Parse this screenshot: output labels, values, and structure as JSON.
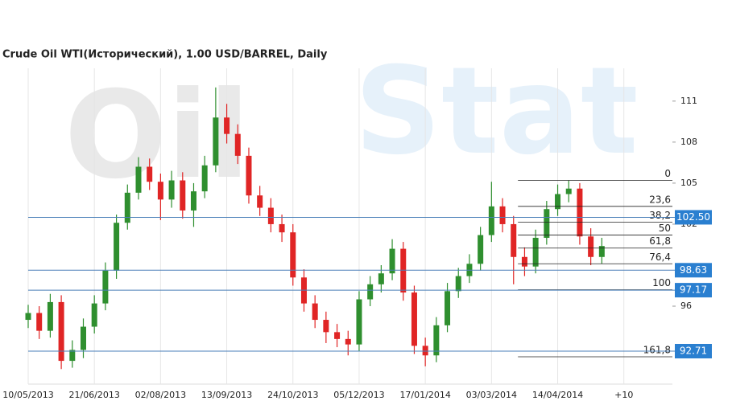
{
  "chart_data": {
    "type": "candlestick",
    "title": "Crude Oil WTI(Исторический), 1.00 USD/BARREL, Daily",
    "watermark_left": "Oil",
    "watermark_right": "Stat",
    "xlim": [
      0,
      292
    ],
    "ylim": [
      90.3,
      113.4
    ],
    "xticks": [
      {
        "value": 0,
        "label": "10/05/2013"
      },
      {
        "value": 30,
        "label": "21/06/2013"
      },
      {
        "value": 60,
        "label": "02/08/2013"
      },
      {
        "value": 90,
        "label": "13/09/2013"
      },
      {
        "value": 120,
        "label": "24/10/2013"
      },
      {
        "value": 150,
        "label": "05/12/2013"
      },
      {
        "value": 180,
        "label": "17/01/2014"
      },
      {
        "value": 210,
        "label": "03/03/2014"
      },
      {
        "value": 240,
        "label": "14/04/2014"
      },
      {
        "value": 270,
        "label": "+10"
      }
    ],
    "yticks": [
      96,
      102,
      105,
      108,
      111
    ],
    "up_color": "#2f8f2f",
    "down_color": "#e02525",
    "x": [
      0,
      5,
      10,
      15,
      20,
      25,
      30,
      35,
      40,
      45,
      50,
      55,
      60,
      65,
      70,
      75,
      80,
      85,
      90,
      95,
      100,
      105,
      110,
      115,
      120,
      125,
      130,
      135,
      140,
      145,
      150,
      155,
      160,
      165,
      170,
      175,
      180,
      185,
      190,
      195,
      200,
      205,
      210,
      215,
      220,
      225,
      230,
      235,
      240,
      245,
      250,
      255,
      260
    ],
    "open": [
      95.0,
      95.5,
      94.2,
      96.3,
      92.0,
      92.8,
      94.5,
      96.2,
      98.6,
      102.1,
      104.3,
      106.2,
      105.1,
      103.8,
      105.2,
      103.0,
      104.4,
      106.3,
      109.8,
      108.6,
      107.0,
      104.1,
      103.2,
      102.0,
      101.4,
      98.1,
      96.2,
      95.0,
      94.1,
      93.6,
      93.2,
      96.5,
      97.6,
      98.4,
      100.2,
      97.0,
      93.1,
      92.4,
      94.6,
      97.1,
      98.2,
      99.1,
      101.2,
      103.3,
      102.0,
      99.6,
      98.9,
      101.0,
      103.1,
      104.2,
      104.6,
      101.1,
      99.6
    ],
    "high": [
      96.1,
      96.0,
      96.9,
      96.8,
      93.5,
      95.1,
      96.8,
      99.2,
      102.7,
      104.9,
      106.9,
      106.8,
      105.7,
      105.9,
      105.8,
      105.0,
      107.0,
      112.0,
      110.8,
      109.3,
      107.6,
      104.8,
      103.9,
      102.7,
      102.0,
      98.7,
      96.8,
      95.6,
      94.7,
      94.2,
      97.1,
      98.2,
      99.0,
      100.9,
      100.7,
      97.5,
      93.7,
      95.2,
      97.7,
      98.8,
      99.8,
      101.8,
      105.1,
      103.9,
      102.6,
      100.3,
      101.6,
      103.7,
      104.9,
      105.2,
      105.0,
      101.7,
      101.0
    ],
    "low": [
      94.4,
      93.6,
      93.7,
      91.4,
      91.5,
      92.2,
      94.0,
      95.7,
      98.0,
      101.6,
      103.8,
      104.5,
      102.3,
      103.2,
      102.4,
      101.8,
      103.9,
      105.8,
      107.9,
      106.4,
      103.5,
      102.6,
      101.4,
      100.7,
      97.5,
      95.6,
      94.4,
      93.3,
      93.0,
      92.4,
      92.7,
      96.0,
      97.0,
      97.9,
      96.4,
      92.5,
      91.6,
      91.9,
      94.1,
      96.6,
      97.7,
      98.6,
      100.7,
      101.4,
      97.6,
      98.2,
      98.4,
      100.5,
      102.6,
      103.6,
      100.5,
      99.0,
      99.1
    ],
    "close": [
      95.5,
      94.2,
      96.3,
      92.0,
      92.8,
      94.5,
      96.2,
      98.6,
      102.1,
      104.3,
      106.2,
      105.1,
      103.8,
      105.2,
      103.0,
      104.4,
      106.3,
      109.8,
      108.6,
      107.0,
      104.1,
      103.2,
      102.0,
      101.4,
      98.1,
      96.2,
      95.0,
      94.1,
      93.6,
      93.2,
      96.5,
      97.6,
      98.4,
      100.2,
      97.0,
      93.1,
      92.4,
      94.6,
      97.1,
      98.2,
      99.1,
      101.2,
      103.3,
      102.0,
      99.6,
      98.9,
      101.0,
      103.1,
      104.2,
      104.6,
      101.1,
      99.6,
      100.4
    ],
    "levels": [
      {
        "value": 102.5,
        "label": "102.50"
      },
      98.63,
      97.17,
      92.71
    ],
    "level_color": "#4a7fb8",
    "label_box_color": "#2a7fd0",
    "fib_start": 222,
    "fib": [
      {
        "value": 105.2,
        "label": "0"
      },
      {
        "value": 103.3,
        "label": "23,6"
      },
      {
        "value": 102.15,
        "label": "38,2"
      },
      {
        "value": 101.2,
        "label": "50"
      },
      {
        "value": 100.25,
        "label": "61,8"
      },
      {
        "value": 99.1,
        "label": "76,4"
      },
      {
        "value": 97.2,
        "label": "100"
      },
      {
        "value": 92.3,
        "label": "161,8"
      }
    ]
  }
}
